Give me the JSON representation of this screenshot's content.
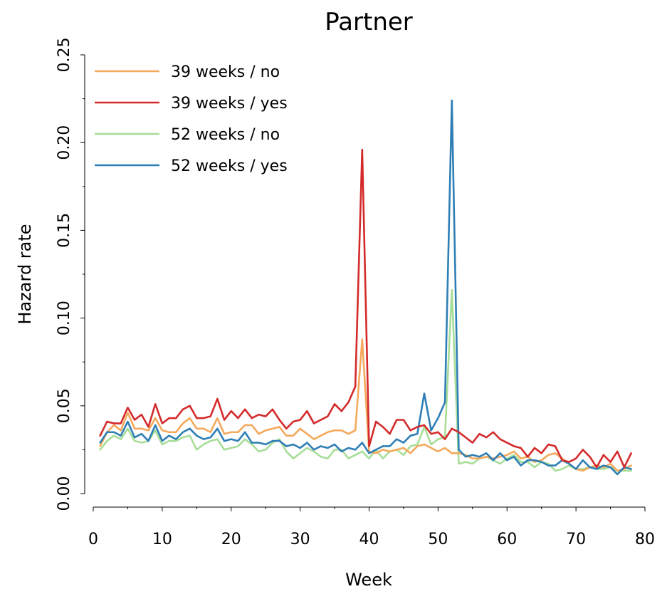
{
  "chart_data": {
    "type": "line",
    "title": "Partner",
    "xlabel": "Week",
    "ylabel": "Hazard rate",
    "xlim": [
      0,
      80
    ],
    "ylim": [
      0,
      0.25
    ],
    "xticks": [
      0,
      10,
      20,
      30,
      40,
      50,
      60,
      70,
      80
    ],
    "yticks": [
      0.0,
      0.05,
      0.1,
      0.15,
      0.2,
      0.25
    ],
    "ytick_labels": [
      "0.00",
      "0.05",
      "0.10",
      "0.15",
      "0.20",
      "0.25"
    ],
    "grid": false,
    "legend_position": "top-left",
    "x": [
      1,
      2,
      3,
      4,
      5,
      6,
      7,
      8,
      9,
      10,
      11,
      12,
      13,
      14,
      15,
      16,
      17,
      18,
      19,
      20,
      21,
      22,
      23,
      24,
      25,
      26,
      27,
      28,
      29,
      30,
      31,
      32,
      33,
      34,
      35,
      36,
      37,
      38,
      39,
      40,
      41,
      42,
      43,
      44,
      45,
      46,
      47,
      48,
      49,
      50,
      51,
      52,
      53,
      54,
      55,
      56,
      57,
      58,
      59,
      60,
      61,
      62,
      63,
      64,
      65,
      66,
      67,
      68,
      69,
      70,
      71,
      72,
      73,
      74,
      75,
      76,
      77,
      78
    ],
    "series": [
      {
        "name": "39 weeks / no",
        "color": "#f4a95c",
        "values": [
          0.027,
          0.035,
          0.039,
          0.036,
          0.046,
          0.037,
          0.037,
          0.036,
          0.043,
          0.036,
          0.035,
          0.035,
          0.04,
          0.043,
          0.037,
          0.037,
          0.035,
          0.043,
          0.034,
          0.035,
          0.035,
          0.039,
          0.039,
          0.034,
          0.036,
          0.037,
          0.038,
          0.033,
          0.033,
          0.037,
          0.034,
          0.031,
          0.033,
          0.035,
          0.036,
          0.036,
          0.034,
          0.036,
          0.088,
          0.024,
          0.023,
          0.025,
          0.024,
          0.025,
          0.026,
          0.023,
          0.027,
          0.028,
          0.026,
          0.024,
          0.026,
          0.023,
          0.023,
          0.022,
          0.02,
          0.02,
          0.021,
          0.02,
          0.021,
          0.022,
          0.024,
          0.02,
          0.021,
          0.018,
          0.019,
          0.022,
          0.023,
          0.02,
          0.017,
          0.014,
          0.013,
          0.015,
          0.016,
          0.015,
          0.017,
          0.013,
          0.014,
          0.016
        ]
      },
      {
        "name": "39 weeks / yes",
        "color": "#d42a2a",
        "values": [
          0.033,
          0.041,
          0.04,
          0.04,
          0.049,
          0.042,
          0.045,
          0.038,
          0.051,
          0.04,
          0.043,
          0.043,
          0.048,
          0.05,
          0.043,
          0.043,
          0.044,
          0.054,
          0.042,
          0.047,
          0.043,
          0.048,
          0.043,
          0.045,
          0.044,
          0.048,
          0.042,
          0.037,
          0.041,
          0.042,
          0.047,
          0.04,
          0.042,
          0.044,
          0.051,
          0.047,
          0.052,
          0.061,
          0.196,
          0.027,
          0.041,
          0.038,
          0.034,
          0.042,
          0.042,
          0.036,
          0.038,
          0.039,
          0.034,
          0.035,
          0.031,
          0.037,
          0.035,
          0.032,
          0.029,
          0.034,
          0.032,
          0.035,
          0.031,
          0.029,
          0.027,
          0.026,
          0.021,
          0.026,
          0.023,
          0.028,
          0.027,
          0.019,
          0.018,
          0.02,
          0.025,
          0.021,
          0.015,
          0.022,
          0.018,
          0.024,
          0.015,
          0.023
        ]
      },
      {
        "name": "52 weeks / no",
        "color": "#a8dd98",
        "values": [
          0.025,
          0.03,
          0.033,
          0.031,
          0.037,
          0.03,
          0.029,
          0.03,
          0.036,
          0.028,
          0.03,
          0.03,
          0.032,
          0.033,
          0.025,
          0.028,
          0.03,
          0.031,
          0.025,
          0.026,
          0.027,
          0.031,
          0.028,
          0.024,
          0.025,
          0.029,
          0.031,
          0.024,
          0.02,
          0.023,
          0.026,
          0.024,
          0.021,
          0.02,
          0.025,
          0.025,
          0.02,
          0.022,
          0.024,
          0.02,
          0.025,
          0.02,
          0.024,
          0.025,
          0.022,
          0.027,
          0.028,
          0.038,
          0.028,
          0.031,
          0.032,
          0.116,
          0.017,
          0.018,
          0.017,
          0.02,
          0.021,
          0.019,
          0.017,
          0.02,
          0.022,
          0.018,
          0.018,
          0.015,
          0.018,
          0.017,
          0.013,
          0.014,
          0.016,
          0.014,
          0.014,
          0.015,
          0.014,
          0.014,
          0.015,
          0.013,
          0.013,
          0.013
        ]
      },
      {
        "name": "52 weeks / yes",
        "color": "#2f7fb6",
        "values": [
          0.029,
          0.035,
          0.035,
          0.033,
          0.041,
          0.032,
          0.034,
          0.03,
          0.039,
          0.03,
          0.033,
          0.031,
          0.035,
          0.037,
          0.033,
          0.031,
          0.032,
          0.037,
          0.03,
          0.031,
          0.03,
          0.035,
          0.029,
          0.029,
          0.028,
          0.03,
          0.03,
          0.027,
          0.028,
          0.026,
          0.029,
          0.025,
          0.027,
          0.026,
          0.028,
          0.024,
          0.026,
          0.025,
          0.029,
          0.023,
          0.025,
          0.027,
          0.027,
          0.031,
          0.029,
          0.033,
          0.034,
          0.057,
          0.036,
          0.043,
          0.052,
          0.224,
          0.025,
          0.021,
          0.022,
          0.021,
          0.023,
          0.019,
          0.023,
          0.019,
          0.021,
          0.016,
          0.019,
          0.019,
          0.018,
          0.016,
          0.016,
          0.019,
          0.017,
          0.014,
          0.019,
          0.015,
          0.014,
          0.016,
          0.015,
          0.011,
          0.015,
          0.014
        ]
      }
    ]
  }
}
